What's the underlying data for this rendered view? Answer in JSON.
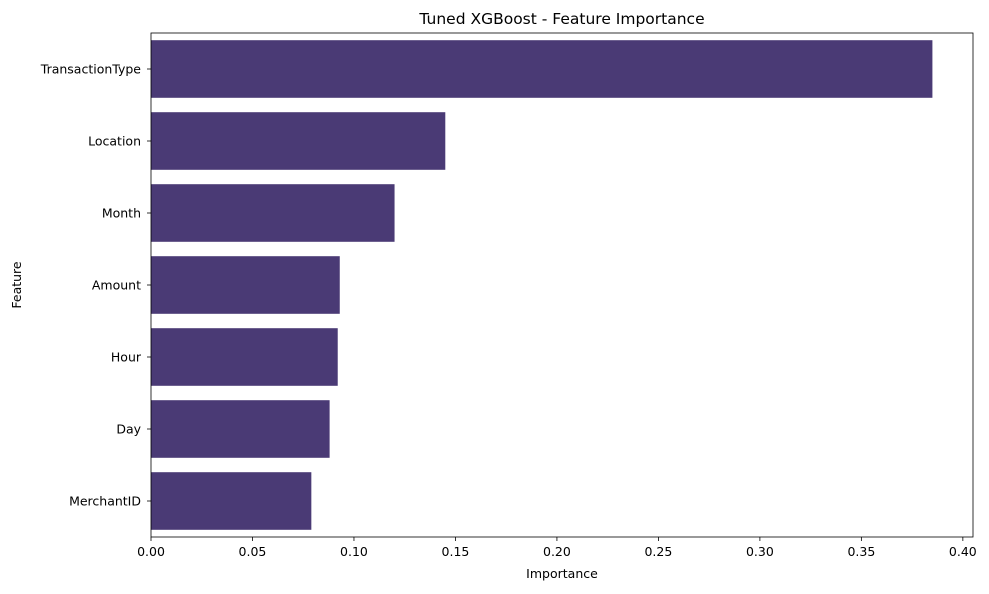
{
  "chart_data": {
    "type": "bar",
    "orientation": "horizontal",
    "title": "Tuned XGBoost - Feature Importance",
    "xlabel": "Importance",
    "ylabel": "Feature",
    "categories": [
      "TransactionType",
      "Location",
      "Month",
      "Amount",
      "Hour",
      "Day",
      "MerchantID"
    ],
    "values": [
      0.385,
      0.145,
      0.12,
      0.093,
      0.092,
      0.088,
      0.079
    ],
    "xlim": [
      0,
      0.405
    ],
    "xticks": [
      0.0,
      0.05,
      0.1,
      0.15,
      0.2,
      0.25,
      0.3,
      0.35,
      0.4
    ],
    "xtick_labels": [
      "0.00",
      "0.05",
      "0.10",
      "0.15",
      "0.20",
      "0.25",
      "0.30",
      "0.35",
      "0.40"
    ],
    "grid": false,
    "bar_color": "#4a3a75"
  }
}
